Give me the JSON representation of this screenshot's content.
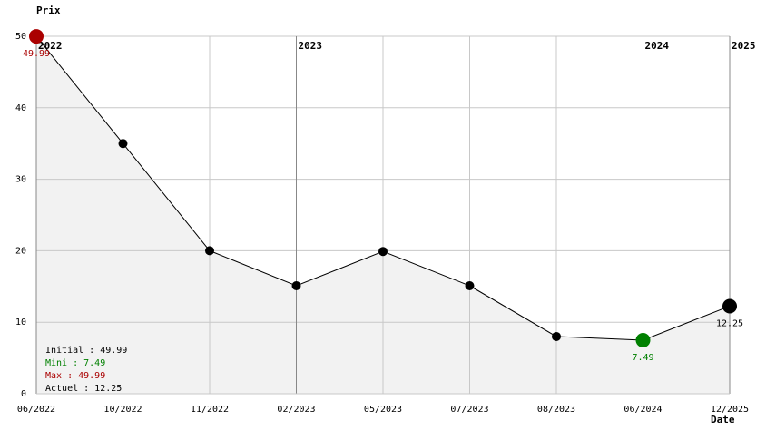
{
  "chart_data": {
    "type": "line",
    "y_label": "Prix",
    "x_label": "Date",
    "categories": [
      "06/2022",
      "10/2022",
      "11/2022",
      "02/2023",
      "05/2023",
      "07/2023",
      "08/2023",
      "06/2024",
      "12/2025"
    ],
    "series": [
      {
        "name": "Prix",
        "color": "#000000",
        "values": [
          49.99,
          35,
          20,
          15.1,
          19.9,
          15.1,
          8,
          7.49,
          12.25
        ]
      }
    ],
    "ylim": [
      0,
      50
    ],
    "yticks": [
      0,
      10,
      20,
      30,
      40,
      50
    ],
    "grid": true,
    "area_color": "#f2f2f2",
    "max_color": "#aa0000",
    "min_color": "#008000",
    "year_markers": [
      {
        "label": "2022",
        "at": "06/2022"
      },
      {
        "label": "2023",
        "at": "02/2023"
      },
      {
        "label": "2024",
        "at": "06/2024"
      },
      {
        "label": "2025",
        "at": "12/2025"
      }
    ],
    "summary": [
      {
        "text": "Initial : 49.99",
        "color": "#000000"
      },
      {
        "text": "Mini : 7.49",
        "color": "#008000"
      },
      {
        "text": "Max : 49.99",
        "color": "#aa0000"
      },
      {
        "text": "Actuel : 12.25",
        "color": "#000000"
      }
    ]
  }
}
